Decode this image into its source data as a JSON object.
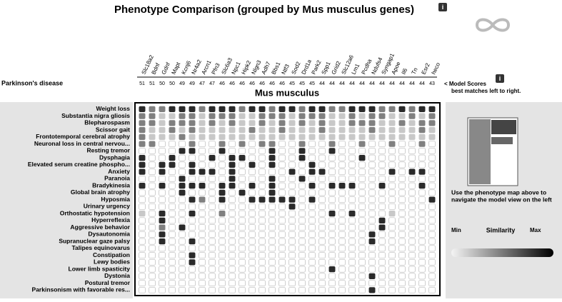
{
  "header": {
    "title": "Phenotype Comparison (grouped by Mus musculus genes)",
    "disease": "Parkinson's disease",
    "organism": "Mus musculus",
    "scores_label": "< Model Scores",
    "scores_note": "best matches left to right."
  },
  "columns": [
    {
      "name": "Slc18a2",
      "score": 51
    },
    {
      "name": "Bdnf",
      "score": 51
    },
    {
      "name": "Gdnf",
      "score": 50
    },
    {
      "name": "Mapt",
      "score": 50
    },
    {
      "name": "Kcnj6",
      "score": 49
    },
    {
      "name": "Nr4a2",
      "score": 49
    },
    {
      "name": "Arcn1",
      "score": 47
    },
    {
      "name": "Pfn3",
      "score": 47
    },
    {
      "name": "Slc6a3",
      "score": 46
    },
    {
      "name": "Npc1",
      "score": 46
    },
    {
      "name": "Hipk2",
      "score": 46
    },
    {
      "name": "Nlgn3",
      "score": 46
    },
    {
      "name": "Adh7",
      "score": 46
    },
    {
      "name": "Bbs1",
      "score": 46
    },
    {
      "name": "Ntf3",
      "score": 46
    },
    {
      "name": "Sod2",
      "score": 45
    },
    {
      "name": "Drd1a",
      "score": 45
    },
    {
      "name": "Park2",
      "score": 45
    },
    {
      "name": "Spp1",
      "score": 44
    },
    {
      "name": "Grid2",
      "score": 44
    },
    {
      "name": "Slc12a6",
      "score": 44
    },
    {
      "name": "Lm1",
      "score": 44
    },
    {
      "name": "Pcdha",
      "score": 44
    },
    {
      "name": "Ndufs4",
      "score": 44
    },
    {
      "name": "Syngap1",
      "score": 44
    },
    {
      "name": "Apoe",
      "score": 44
    },
    {
      "name": "Il6",
      "score": 44
    },
    {
      "name": "Tn",
      "score": 44
    },
    {
      "name": "Esr2",
      "score": 44
    },
    {
      "name": "heco",
      "score": 43
    }
  ],
  "rows": [
    {
      "label": "Weight loss",
      "cells": [
        3,
        2,
        2,
        3,
        3,
        3,
        2,
        3,
        3,
        3,
        2,
        3,
        3,
        2,
        3,
        3,
        2,
        3,
        3,
        2,
        2,
        3,
        3,
        3,
        2,
        2,
        3,
        2,
        3,
        3
      ]
    },
    {
      "label": "Substantia nigra gliosis",
      "cells": [
        2,
        2,
        1,
        1,
        2,
        2,
        1,
        2,
        2,
        2,
        1,
        1,
        2,
        2,
        2,
        1,
        2,
        2,
        2,
        1,
        1,
        2,
        1,
        2,
        2,
        1,
        1,
        2,
        1,
        2
      ]
    },
    {
      "label": "Blepharospasm",
      "cells": [
        2,
        2,
        1,
        2,
        2,
        2,
        1,
        2,
        1,
        2,
        1,
        1,
        2,
        1,
        2,
        1,
        2,
        1,
        2,
        1,
        1,
        2,
        2,
        2,
        1,
        1,
        2,
        1,
        2,
        2
      ]
    },
    {
      "label": "Scissor gait",
      "cells": [
        2,
        1,
        1,
        2,
        1,
        2,
        1,
        1,
        1,
        1,
        1,
        2,
        1,
        1,
        2,
        1,
        1,
        1,
        2,
        1,
        1,
        1,
        1,
        2,
        1,
        1,
        1,
        1,
        2,
        1
      ]
    },
    {
      "label": "Frontotemporal cerebral atrophy",
      "cells": [
        2,
        1,
        1,
        1,
        2,
        1,
        1,
        1,
        1,
        1,
        1,
        1,
        1,
        1,
        1,
        1,
        1,
        1,
        1,
        1,
        1,
        1,
        1,
        1,
        1,
        1,
        1,
        1,
        1,
        1
      ]
    },
    {
      "label": "Neuronal loss in central nervou...",
      "cells": [
        2,
        2,
        0,
        0,
        0,
        2,
        0,
        0,
        2,
        0,
        2,
        0,
        2,
        2,
        0,
        0,
        2,
        0,
        0,
        2,
        0,
        0,
        2,
        0,
        0,
        2,
        0,
        0,
        2,
        0
      ]
    },
    {
      "label": "Resting tremor",
      "cells": [
        0,
        0,
        0,
        0,
        3,
        3,
        0,
        0,
        3,
        0,
        0,
        0,
        0,
        3,
        0,
        0,
        3,
        0,
        0,
        3,
        0,
        0,
        0,
        0,
        0,
        0,
        0,
        0,
        0,
        0
      ]
    },
    {
      "label": "Dysphagia",
      "cells": [
        3,
        0,
        0,
        3,
        0,
        0,
        0,
        3,
        0,
        3,
        3,
        0,
        0,
        3,
        0,
        0,
        3,
        0,
        0,
        0,
        0,
        0,
        3,
        0,
        0,
        0,
        0,
        0,
        0,
        0
      ]
    },
    {
      "label": "Elevated serum creatine phospho...",
      "cells": [
        3,
        0,
        3,
        3,
        0,
        3,
        0,
        0,
        0,
        3,
        0,
        3,
        0,
        3,
        0,
        0,
        0,
        3,
        0,
        0,
        0,
        0,
        0,
        0,
        0,
        0,
        0,
        0,
        0,
        0
      ]
    },
    {
      "label": "Anxiety",
      "cells": [
        3,
        0,
        3,
        0,
        0,
        3,
        3,
        3,
        0,
        3,
        0,
        0,
        0,
        0,
        0,
        3,
        0,
        3,
        3,
        0,
        0,
        0,
        0,
        0,
        0,
        3,
        0,
        3,
        3,
        0
      ]
    },
    {
      "label": "Paranoia",
      "cells": [
        0,
        0,
        0,
        0,
        3,
        0,
        0,
        0,
        0,
        3,
        0,
        0,
        0,
        3,
        0,
        0,
        3,
        0,
        0,
        0,
        0,
        0,
        0,
        0,
        0,
        0,
        0,
        0,
        0,
        0
      ]
    },
    {
      "label": "Bradykinesia",
      "cells": [
        3,
        0,
        3,
        0,
        3,
        3,
        3,
        0,
        3,
        3,
        0,
        3,
        0,
        3,
        0,
        0,
        0,
        3,
        0,
        3,
        3,
        3,
        0,
        0,
        3,
        0,
        0,
        0,
        3,
        0
      ]
    },
    {
      "label": "Global brain atrophy",
      "cells": [
        0,
        0,
        0,
        0,
        3,
        0,
        0,
        0,
        3,
        0,
        3,
        0,
        0,
        3,
        0,
        0,
        0,
        0,
        0,
        0,
        0,
        0,
        0,
        0,
        0,
        0,
        0,
        0,
        0,
        0
      ]
    },
    {
      "label": "Hyposmia",
      "cells": [
        0,
        0,
        0,
        0,
        0,
        3,
        2,
        0,
        3,
        0,
        0,
        3,
        3,
        3,
        3,
        3,
        0,
        3,
        0,
        0,
        0,
        0,
        0,
        0,
        0,
        0,
        0,
        0,
        0,
        3
      ]
    },
    {
      "label": "Urinary urgency",
      "cells": [
        0,
        0,
        0,
        0,
        0,
        0,
        0,
        0,
        0,
        0,
        0,
        0,
        0,
        0,
        0,
        3,
        0,
        0,
        0,
        0,
        0,
        0,
        0,
        0,
        0,
        0,
        0,
        0,
        0,
        0
      ]
    },
    {
      "label": "Orthostatic hypotension",
      "cells": [
        1,
        0,
        3,
        0,
        0,
        3,
        0,
        0,
        2,
        0,
        0,
        0,
        0,
        0,
        0,
        0,
        0,
        0,
        0,
        3,
        0,
        3,
        0,
        0,
        0,
        1,
        0,
        0,
        0,
        0
      ]
    },
    {
      "label": "Hyperreflexia",
      "cells": [
        0,
        0,
        3,
        0,
        0,
        0,
        0,
        0,
        0,
        0,
        0,
        0,
        0,
        0,
        0,
        0,
        0,
        0,
        0,
        0,
        0,
        0,
        0,
        0,
        3,
        0,
        0,
        0,
        0,
        0
      ]
    },
    {
      "label": "Aggressive behavior",
      "cells": [
        0,
        0,
        2,
        0,
        3,
        0,
        0,
        0,
        0,
        0,
        0,
        0,
        0,
        0,
        0,
        0,
        0,
        0,
        0,
        0,
        0,
        0,
        0,
        0,
        3,
        0,
        0,
        0,
        0,
        0
      ]
    },
    {
      "label": "Dysautonomia",
      "cells": [
        0,
        0,
        3,
        0,
        0,
        0,
        0,
        0,
        0,
        0,
        0,
        0,
        0,
        0,
        0,
        0,
        0,
        0,
        0,
        0,
        0,
        0,
        0,
        3,
        0,
        0,
        0,
        0,
        0,
        0
      ]
    },
    {
      "label": "Supranuclear gaze palsy",
      "cells": [
        0,
        0,
        3,
        0,
        0,
        3,
        0,
        0,
        0,
        0,
        0,
        0,
        0,
        0,
        0,
        0,
        0,
        0,
        0,
        0,
        0,
        0,
        0,
        3,
        0,
        0,
        0,
        0,
        0,
        0
      ]
    },
    {
      "label": "Talipes equinovarus",
      "cells": [
        0,
        0,
        0,
        0,
        0,
        0,
        0,
        0,
        0,
        0,
        0,
        0,
        0,
        0,
        0,
        0,
        0,
        0,
        0,
        0,
        0,
        0,
        0,
        0,
        0,
        0,
        0,
        0,
        0,
        0
      ]
    },
    {
      "label": "Constipation",
      "cells": [
        0,
        0,
        0,
        0,
        0,
        3,
        0,
        0,
        0,
        0,
        0,
        0,
        0,
        0,
        0,
        0,
        0,
        0,
        0,
        0,
        0,
        0,
        0,
        0,
        0,
        0,
        0,
        0,
        0,
        0
      ]
    },
    {
      "label": "Lewy bodies",
      "cells": [
        0,
        0,
        0,
        0,
        0,
        3,
        0,
        0,
        0,
        0,
        0,
        0,
        0,
        0,
        0,
        0,
        0,
        0,
        0,
        0,
        0,
        0,
        0,
        0,
        0,
        0,
        0,
        0,
        0,
        0
      ]
    },
    {
      "label": "Lower limb spasticity",
      "cells": [
        0,
        0,
        0,
        0,
        0,
        0,
        0,
        0,
        0,
        0,
        0,
        0,
        0,
        0,
        0,
        0,
        0,
        0,
        0,
        3,
        0,
        0,
        0,
        0,
        0,
        0,
        0,
        0,
        0,
        0
      ]
    },
    {
      "label": "Dystonia",
      "cells": [
        0,
        0,
        0,
        0,
        0,
        0,
        0,
        0,
        0,
        0,
        0,
        0,
        0,
        0,
        0,
        0,
        0,
        0,
        0,
        0,
        0,
        0,
        0,
        3,
        0,
        0,
        0,
        0,
        0,
        0
      ]
    },
    {
      "label": "Postural tremor",
      "cells": [
        0,
        0,
        0,
        0,
        0,
        0,
        0,
        0,
        0,
        0,
        0,
        0,
        0,
        0,
        0,
        0,
        0,
        0,
        0,
        0,
        0,
        0,
        0,
        0,
        0,
        0,
        0,
        0,
        0,
        0
      ]
    },
    {
      "label": "Parkinsonism with favorable res...",
      "cells": [
        0,
        0,
        0,
        0,
        0,
        0,
        0,
        0,
        0,
        0,
        0,
        0,
        0,
        0,
        0,
        0,
        0,
        0,
        0,
        0,
        0,
        0,
        0,
        3,
        0,
        0,
        0,
        0,
        0,
        0
      ]
    }
  ],
  "side_panel": {
    "hint": [
      "Use the phenotype map above to",
      "navigate the model view on the left"
    ],
    "min": "Min",
    "similarity": "Similarity",
    "max": "Max"
  }
}
